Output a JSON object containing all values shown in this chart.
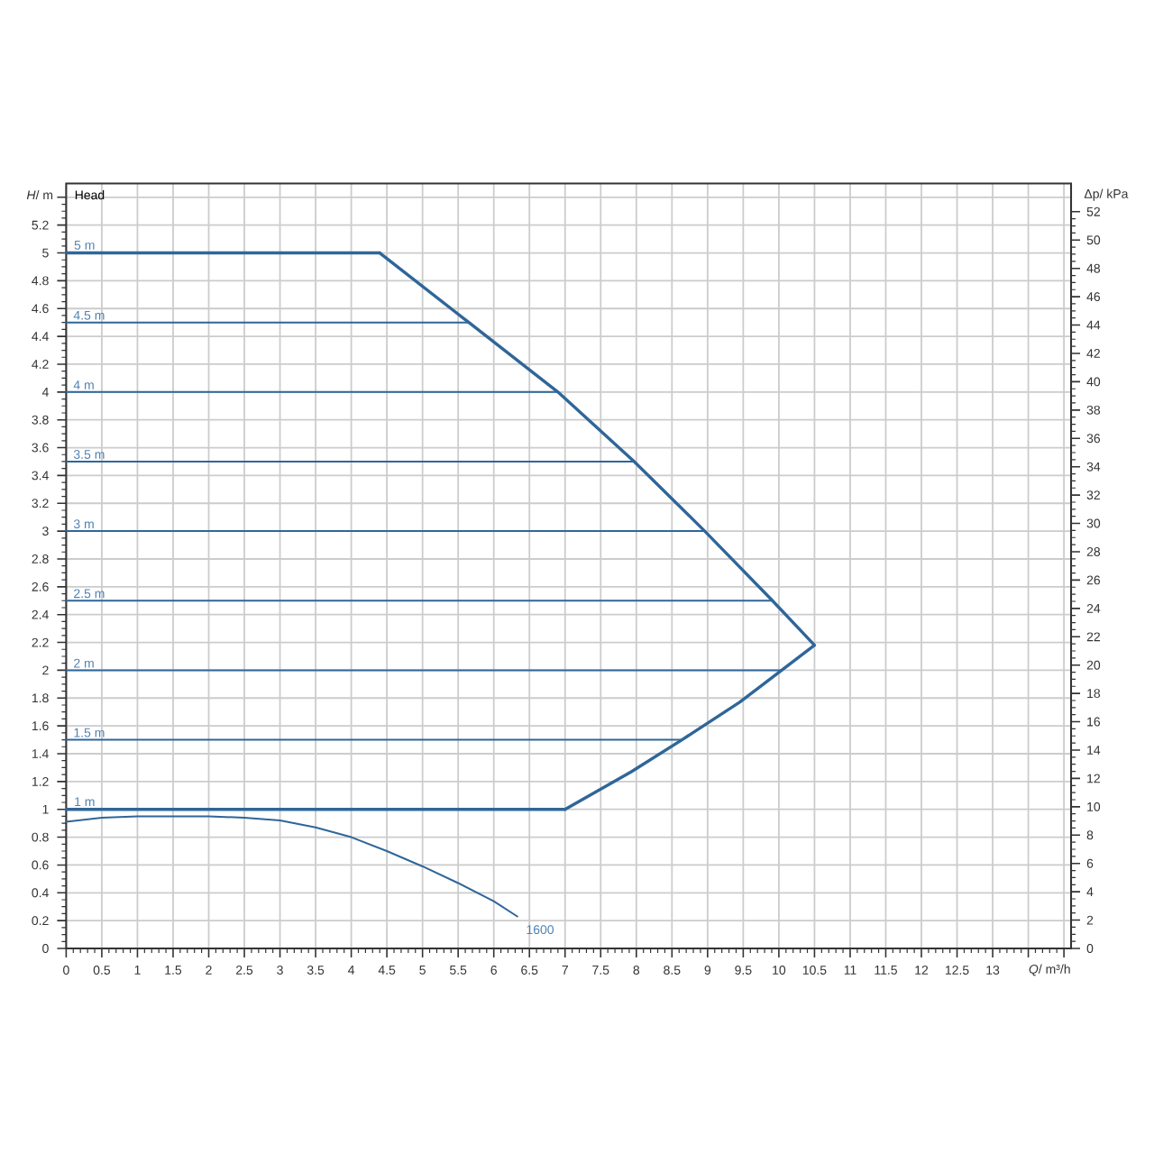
{
  "chart_data": {
    "type": "line",
    "title": "Head",
    "xlabel": "*Q*/ m³/h",
    "ylabel": "*H*/ m",
    "y2label": "Δp/ kPa",
    "xlim": [
      0,
      14.1
    ],
    "ylim": [
      0,
      5.5
    ],
    "y2lim": [
      0,
      54
    ],
    "xticks": [
      0,
      0.5,
      1,
      1.5,
      2,
      2.5,
      3,
      3.5,
      4,
      4.5,
      5,
      5.5,
      6,
      6.5,
      7,
      7.5,
      8,
      8.5,
      9,
      9.5,
      10,
      10.5,
      11,
      11.5,
      12,
      12.5,
      13,
      {
        "value": 13.5,
        "label": null
      },
      {
        "value": 14,
        "label": null
      }
    ],
    "yticks": [
      0,
      0.2,
      0.4,
      0.6,
      0.8,
      1,
      1.2,
      1.4,
      1.6,
      1.8,
      2,
      2.2,
      2.4,
      2.6,
      2.8,
      3,
      3.2,
      3.4,
      3.6,
      3.8,
      4,
      4.2,
      4.4,
      4.6,
      4.8,
      5,
      5.2,
      {
        "value": 5.4,
        "label": null
      }
    ],
    "y2ticks": [
      0,
      2,
      4,
      6,
      8,
      10,
      12,
      14,
      16,
      18,
      20,
      22,
      24,
      26,
      28,
      30,
      32,
      34,
      36,
      38,
      40,
      42,
      44,
      46,
      48,
      50,
      52
    ],
    "grid": true,
    "series": [
      {
        "name": "5 m",
        "color": "#2f6699",
        "x": [
          0,
          4.4
        ],
        "values": [
          5,
          5
        ]
      },
      {
        "color": "#2f6699",
        "x": [
          4.4,
          5.65,
          6.9,
          7.97,
          8.96,
          9.91,
          10.5,
          10.04,
          9.45,
          8.64,
          7.93,
          7.0
        ],
        "values": [
          5,
          4.5,
          4.0,
          3.5,
          3.0,
          2.5,
          2.18,
          2.0,
          1.77,
          1.5,
          1.27,
          1.0
        ]
      },
      {
        "name": "1 m",
        "color": "#2f6699",
        "x": [
          0,
          7.0
        ],
        "values": [
          1,
          1
        ]
      },
      {
        "name": "4.5 m",
        "color": "#2f6699",
        "x": [
          0,
          5.65
        ],
        "values": [
          4.5,
          4.5
        ]
      },
      {
        "name": "4 m",
        "color": "#2f6699",
        "x": [
          0,
          6.9
        ],
        "values": [
          4.0,
          4.0
        ]
      },
      {
        "name": "3.5 m",
        "color": "#2f6699",
        "x": [
          0,
          7.97
        ],
        "values": [
          3.5,
          3.5
        ]
      },
      {
        "name": "3 m",
        "color": "#2f6699",
        "x": [
          0,
          8.96
        ],
        "values": [
          3.0,
          3.0
        ]
      },
      {
        "name": "2.5 m",
        "color": "#2f6699",
        "x": [
          0,
          9.91
        ],
        "values": [
          2.5,
          2.5
        ]
      },
      {
        "name": "2 m",
        "color": "#2f6699",
        "x": [
          0,
          10.04
        ],
        "values": [
          2.0,
          2.0
        ]
      },
      {
        "name": "1.5 m",
        "color": "#2f6699",
        "x": [
          0,
          8.64
        ],
        "values": [
          1.5,
          1.5
        ]
      },
      {
        "name": "1600",
        "color": "#2f6699",
        "x": [
          0,
          0.5,
          1,
          2,
          2.5,
          3,
          3.5,
          4,
          4.5,
          5,
          5.5,
          6,
          6.33
        ],
        "values": [
          0.91,
          0.94,
          0.95,
          0.95,
          0.94,
          0.92,
          0.87,
          0.8,
          0.7,
          0.59,
          0.47,
          0.34,
          0.23
        ]
      }
    ]
  }
}
